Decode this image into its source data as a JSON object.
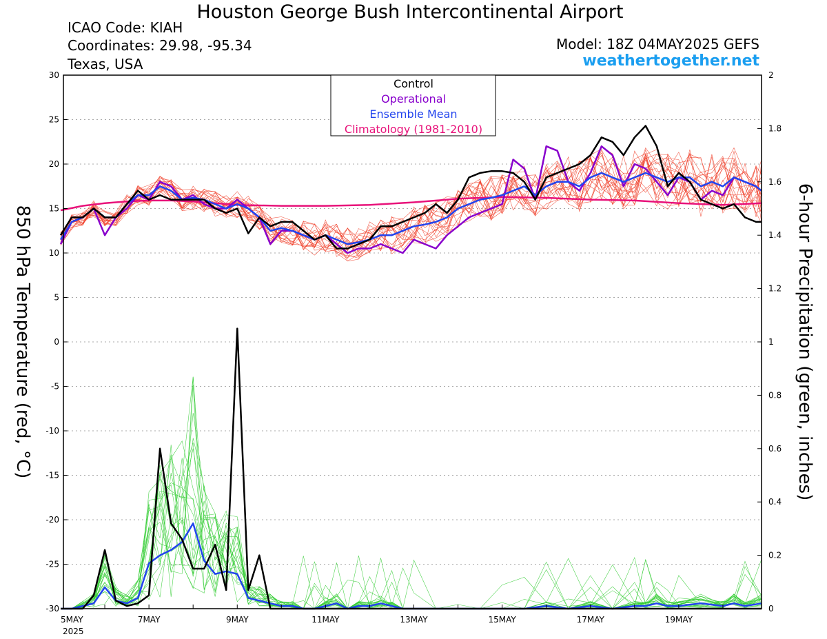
{
  "header": {
    "title": "Houston George Bush Intercontinental Airport",
    "icao": "ICAO Code: KIAH",
    "coordinates": "Coordinates: 29.98, -95.34",
    "region": "Texas, USA",
    "model": "Model: 18Z 04MAY2025 GEFS",
    "site": "weathertogether.net",
    "site_color": "#1a9ef0"
  },
  "chart_data": {
    "type": "line",
    "title": "Houston George Bush Intercontinental Airport",
    "ylabel_left": "850 hPa Temperature (red, °C)",
    "ylabel_right": "6-hour Precipitation (green, inches)",
    "ylim_left": [
      -30,
      30
    ],
    "ylim_right": [
      0,
      2
    ],
    "yticks_left": [
      "30",
      "25",
      "20",
      "15",
      "10",
      "5",
      "0",
      "-5",
      "-10",
      "-15",
      "-20",
      "-25",
      "-30"
    ],
    "yticks_right": [
      "2",
      "1.8",
      "1.6",
      "1.4",
      "1.2",
      "1",
      "0.8",
      "0.6",
      "0.4",
      "0.2",
      "0"
    ],
    "x_day_start": 5,
    "x_day_end": 20.875,
    "xticks": [
      {
        "day": 5,
        "label": "5MAY",
        "sublabel": "2025"
      },
      {
        "day": 7,
        "label": "7MAY"
      },
      {
        "day": 9,
        "label": "9MAY"
      },
      {
        "day": 11,
        "label": "11MAY"
      },
      {
        "day": 13,
        "label": "13MAY"
      },
      {
        "day": 15,
        "label": "15MAY"
      },
      {
        "day": 17,
        "label": "17MAY"
      },
      {
        "day": 19,
        "label": "19MAY"
      }
    ],
    "grid": true,
    "legend": {
      "placement": "top-center",
      "entries": [
        {
          "name": "Control",
          "color": "#000000"
        },
        {
          "name": "Operational",
          "color": "#8800cc"
        },
        {
          "name": "Ensemble Mean",
          "color": "#2244ee"
        },
        {
          "name": "Climatology (1981-2010)",
          "color": "#e8127a"
        }
      ]
    },
    "colors": {
      "control": "#000000",
      "operational": "#8800cc",
      "mean": "#2244ee",
      "climatology": "#e8127a",
      "temp_members": "#f0402a",
      "precip_members": "#33cc33"
    },
    "series": [
      {
        "role": "climatology",
        "axis": "left",
        "x": [
          5,
          5.5,
          6,
          6.5,
          7,
          7.5,
          8,
          8.5,
          9,
          10,
          11,
          12,
          13,
          14,
          15,
          16,
          17,
          18,
          19,
          20,
          20.875
        ],
        "values": [
          14.8,
          15.3,
          15.6,
          15.8,
          15.9,
          15.9,
          15.8,
          15.6,
          15.4,
          15.3,
          15.3,
          15.4,
          15.7,
          16.1,
          16.3,
          16.2,
          16.0,
          15.9,
          15.6,
          15.4,
          15.6
        ]
      },
      {
        "role": "control",
        "axis": "left",
        "x": [
          5,
          5.25,
          5.5,
          5.75,
          6,
          6.25,
          6.5,
          6.75,
          7,
          7.25,
          7.5,
          7.75,
          8,
          8.25,
          8.5,
          8.75,
          9,
          9.25,
          9.5,
          9.75,
          10,
          10.25,
          10.5,
          10.75,
          11,
          11.25,
          11.5,
          11.75,
          12,
          12.25,
          12.5,
          12.75,
          13,
          13.25,
          13.5,
          13.75,
          14,
          14.25,
          14.5,
          14.75,
          15,
          15.25,
          15.5,
          15.75,
          16,
          16.25,
          16.5,
          16.75,
          17,
          17.25,
          17.5,
          17.75,
          18,
          18.25,
          18.5,
          18.75,
          19,
          19.25,
          19.5,
          19.75,
          20,
          20.25,
          20.5,
          20.75,
          20.875
        ],
        "values": [
          12.0,
          14.0,
          14.0,
          15.0,
          14.0,
          14.0,
          15.5,
          17.0,
          16.0,
          16.5,
          16.0,
          16.0,
          16.0,
          16.0,
          15.0,
          14.5,
          15.0,
          12.2,
          14.0,
          13.0,
          13.5,
          13.5,
          12.5,
          11.5,
          12.0,
          10.5,
          10.5,
          11.0,
          11.5,
          13.0,
          13.0,
          13.5,
          14.0,
          14.5,
          15.5,
          14.5,
          16.0,
          18.5,
          19.0,
          19.2,
          19.2,
          19.0,
          18.0,
          16.0,
          18.5,
          19.0,
          19.5,
          20.0,
          21.0,
          23.0,
          22.5,
          21.0,
          23.0,
          24.3,
          22.0,
          17.5,
          19.0,
          18.0,
          16.0,
          15.5,
          15.0,
          15.5,
          14.0,
          13.5,
          13.5
        ]
      },
      {
        "role": "operational",
        "axis": "left",
        "x": [
          5,
          5.25,
          5.5,
          5.75,
          6,
          6.25,
          6.5,
          6.75,
          7,
          7.25,
          7.5,
          7.75,
          8,
          8.25,
          8.5,
          8.75,
          9,
          9.25,
          9.5,
          9.75,
          10,
          10.25,
          10.5,
          10.75,
          11,
          11.25,
          11.5,
          11.75,
          12,
          12.25,
          12.5,
          12.75,
          13,
          13.25,
          13.5,
          13.75,
          14,
          14.25,
          14.5,
          14.75,
          15,
          15.25,
          15.5,
          15.75,
          16,
          16.25,
          16.5,
          16.75,
          17,
          17.25,
          17.5,
          17.75,
          18,
          18.25,
          18.5,
          18.75,
          19,
          19.25,
          19.5,
          19.75,
          20,
          20.25,
          20.5,
          20.75,
          20.875
        ],
        "values": [
          11.0,
          13.5,
          14.0,
          15.0,
          12.0,
          14.0,
          15.0,
          16.5,
          16.0,
          18.0,
          17.5,
          16.0,
          16.5,
          15.5,
          15.0,
          15.0,
          16.0,
          15.0,
          14.0,
          11.0,
          12.5,
          12.5,
          12.0,
          11.5,
          12.0,
          11.0,
          10.0,
          10.5,
          10.5,
          11.0,
          10.5,
          10.0,
          11.5,
          11.0,
          10.5,
          12.0,
          13.0,
          14.0,
          14.5,
          15.0,
          15.5,
          20.5,
          19.5,
          16.0,
          22.0,
          21.5,
          18.0,
          17.0,
          19.0,
          22.0,
          21.0,
          17.5,
          20.0,
          19.5,
          18.0,
          16.5,
          18.5,
          18.0,
          16.0,
          17.0,
          16.5,
          18.5,
          18.0,
          17.5,
          17.0
        ]
      },
      {
        "role": "mean",
        "axis": "left",
        "x": [
          5,
          5.25,
          5.5,
          5.75,
          6,
          6.25,
          6.5,
          6.75,
          7,
          7.25,
          7.5,
          7.75,
          8,
          8.25,
          8.5,
          8.75,
          9,
          9.25,
          9.5,
          9.75,
          10,
          10.25,
          10.5,
          10.75,
          11,
          11.25,
          11.5,
          11.75,
          12,
          12.25,
          12.5,
          12.75,
          13,
          13.25,
          13.5,
          13.75,
          14,
          14.25,
          14.5,
          14.75,
          15,
          15.25,
          15.5,
          15.75,
          16,
          16.25,
          16.5,
          16.75,
          17,
          17.25,
          17.5,
          17.75,
          18,
          18.25,
          18.5,
          18.75,
          19,
          19.25,
          19.5,
          19.75,
          20,
          20.25,
          20.5,
          20.75,
          20.875
        ],
        "values": [
          11.5,
          13.5,
          14.0,
          15.0,
          14.0,
          14.0,
          15.5,
          16.5,
          16.5,
          17.5,
          17.0,
          16.0,
          16.2,
          16.0,
          15.5,
          15.0,
          15.5,
          15.0,
          14.0,
          12.5,
          12.8,
          12.5,
          12.0,
          11.5,
          12.0,
          11.5,
          11.0,
          11.2,
          11.5,
          12.0,
          12.0,
          12.5,
          13.0,
          13.2,
          13.5,
          14.0,
          15.0,
          15.5,
          16.0,
          16.2,
          16.5,
          17.0,
          17.5,
          16.5,
          17.5,
          18.0,
          18.0,
          17.5,
          18.5,
          19.0,
          18.5,
          18.0,
          18.5,
          19.0,
          18.5,
          18.0,
          18.5,
          18.5,
          17.5,
          18.0,
          17.5,
          18.5,
          18.0,
          17.5,
          17.0
        ]
      },
      {
        "role": "control",
        "axis": "right",
        "x": [
          5,
          5.25,
          5.5,
          5.75,
          6,
          6.25,
          6.5,
          6.75,
          7,
          7.25,
          7.5,
          7.75,
          8,
          8.25,
          8.5,
          8.75,
          9,
          9.25,
          9.5,
          9.75,
          10,
          10.25,
          10.5,
          10.75,
          11,
          11.5,
          12,
          12.5,
          13,
          14,
          15,
          16,
          17,
          18,
          19,
          20,
          20.875
        ],
        "values": [
          0,
          0,
          0,
          0.05,
          0.22,
          0.03,
          0.01,
          0.02,
          0.05,
          0.6,
          0.32,
          0.26,
          0.15,
          0.15,
          0.24,
          0.07,
          1.05,
          0.07,
          0.2,
          0,
          0,
          0,
          0,
          0,
          0,
          0,
          0,
          0,
          0,
          0,
          0,
          0,
          0,
          0,
          0,
          0,
          0
        ]
      },
      {
        "role": "mean",
        "axis": "right",
        "x": [
          5,
          5.25,
          5.5,
          5.75,
          6,
          6.25,
          6.5,
          6.75,
          7,
          7.25,
          7.5,
          7.75,
          8,
          8.25,
          8.5,
          8.75,
          9,
          9.25,
          9.5,
          9.75,
          10,
          10.25,
          10.5,
          10.75,
          11,
          11.25,
          11.5,
          11.75,
          12,
          12.25,
          12.5,
          12.75,
          13,
          13.5,
          14,
          14.5,
          15,
          15.5,
          16,
          16.5,
          17,
          17.5,
          18,
          18.25,
          18.5,
          18.75,
          19,
          19.5,
          20,
          20.25,
          20.5,
          20.875
        ],
        "values": [
          0,
          0,
          0.01,
          0.02,
          0.08,
          0.03,
          0.02,
          0.04,
          0.17,
          0.2,
          0.22,
          0.25,
          0.32,
          0.18,
          0.13,
          0.14,
          0.13,
          0.04,
          0.03,
          0.02,
          0.01,
          0.01,
          0,
          0,
          0.01,
          0.02,
          0,
          0.01,
          0.01,
          0.02,
          0.01,
          0,
          0,
          0,
          0,
          0,
          0,
          0,
          0.01,
          0,
          0.01,
          0,
          0.01,
          0.01,
          0.02,
          0.01,
          0.01,
          0.02,
          0.01,
          0.02,
          0.01,
          0.02
        ]
      }
    ]
  }
}
